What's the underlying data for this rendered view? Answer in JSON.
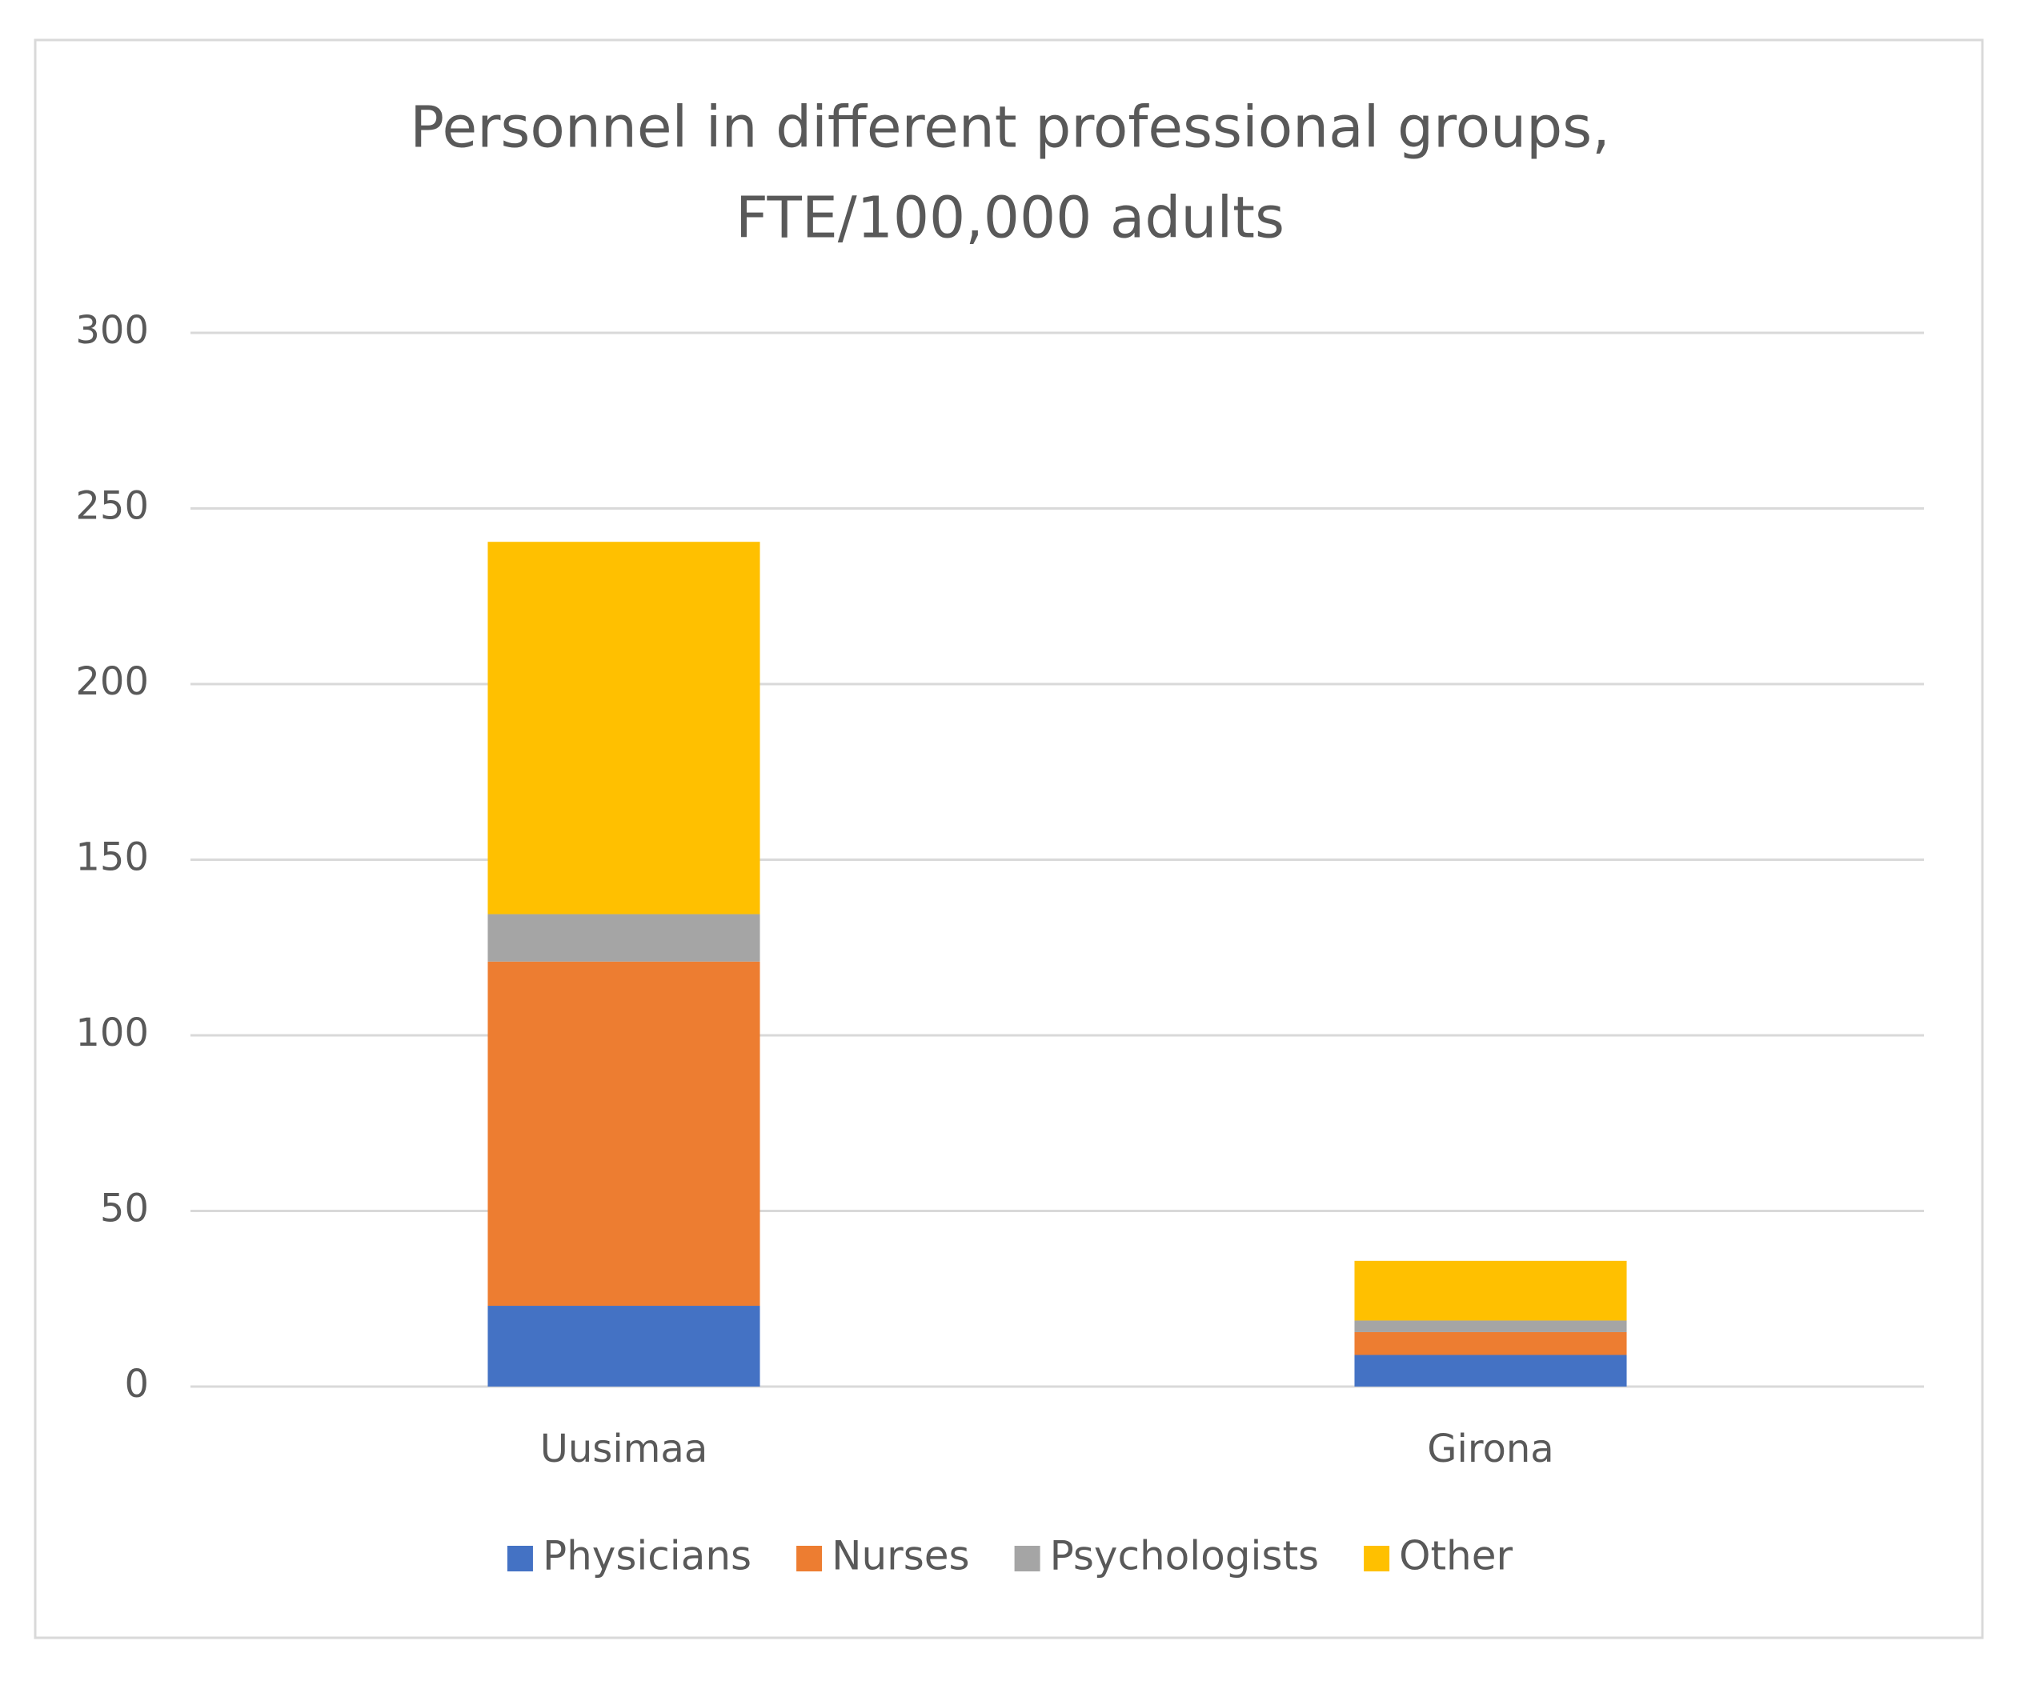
{
  "chart_data": {
    "type": "stacked_bar",
    "title": [
      "Personnel in different professional groups,",
      "FTE/100,000 adults"
    ],
    "categories": [
      "Uusimaa",
      "Girona"
    ],
    "series": [
      {
        "name": "Physicians",
        "color": "#4472c4",
        "values": [
          23,
          9
        ]
      },
      {
        "name": "Nurses",
        "color": "#ed7d31",
        "values": [
          98,
          6.5
        ]
      },
      {
        "name": "Psychologists",
        "color": "#a5a5a5",
        "values": [
          13.5,
          3.3
        ]
      },
      {
        "name": "Other",
        "color": "#ffc000",
        "values": [
          106,
          17
        ]
      }
    ],
    "ylim": [
      0,
      300
    ],
    "yticks": [
      0,
      50,
      100,
      150,
      200,
      250,
      300
    ],
    "grid": true,
    "legend": "bottom"
  }
}
